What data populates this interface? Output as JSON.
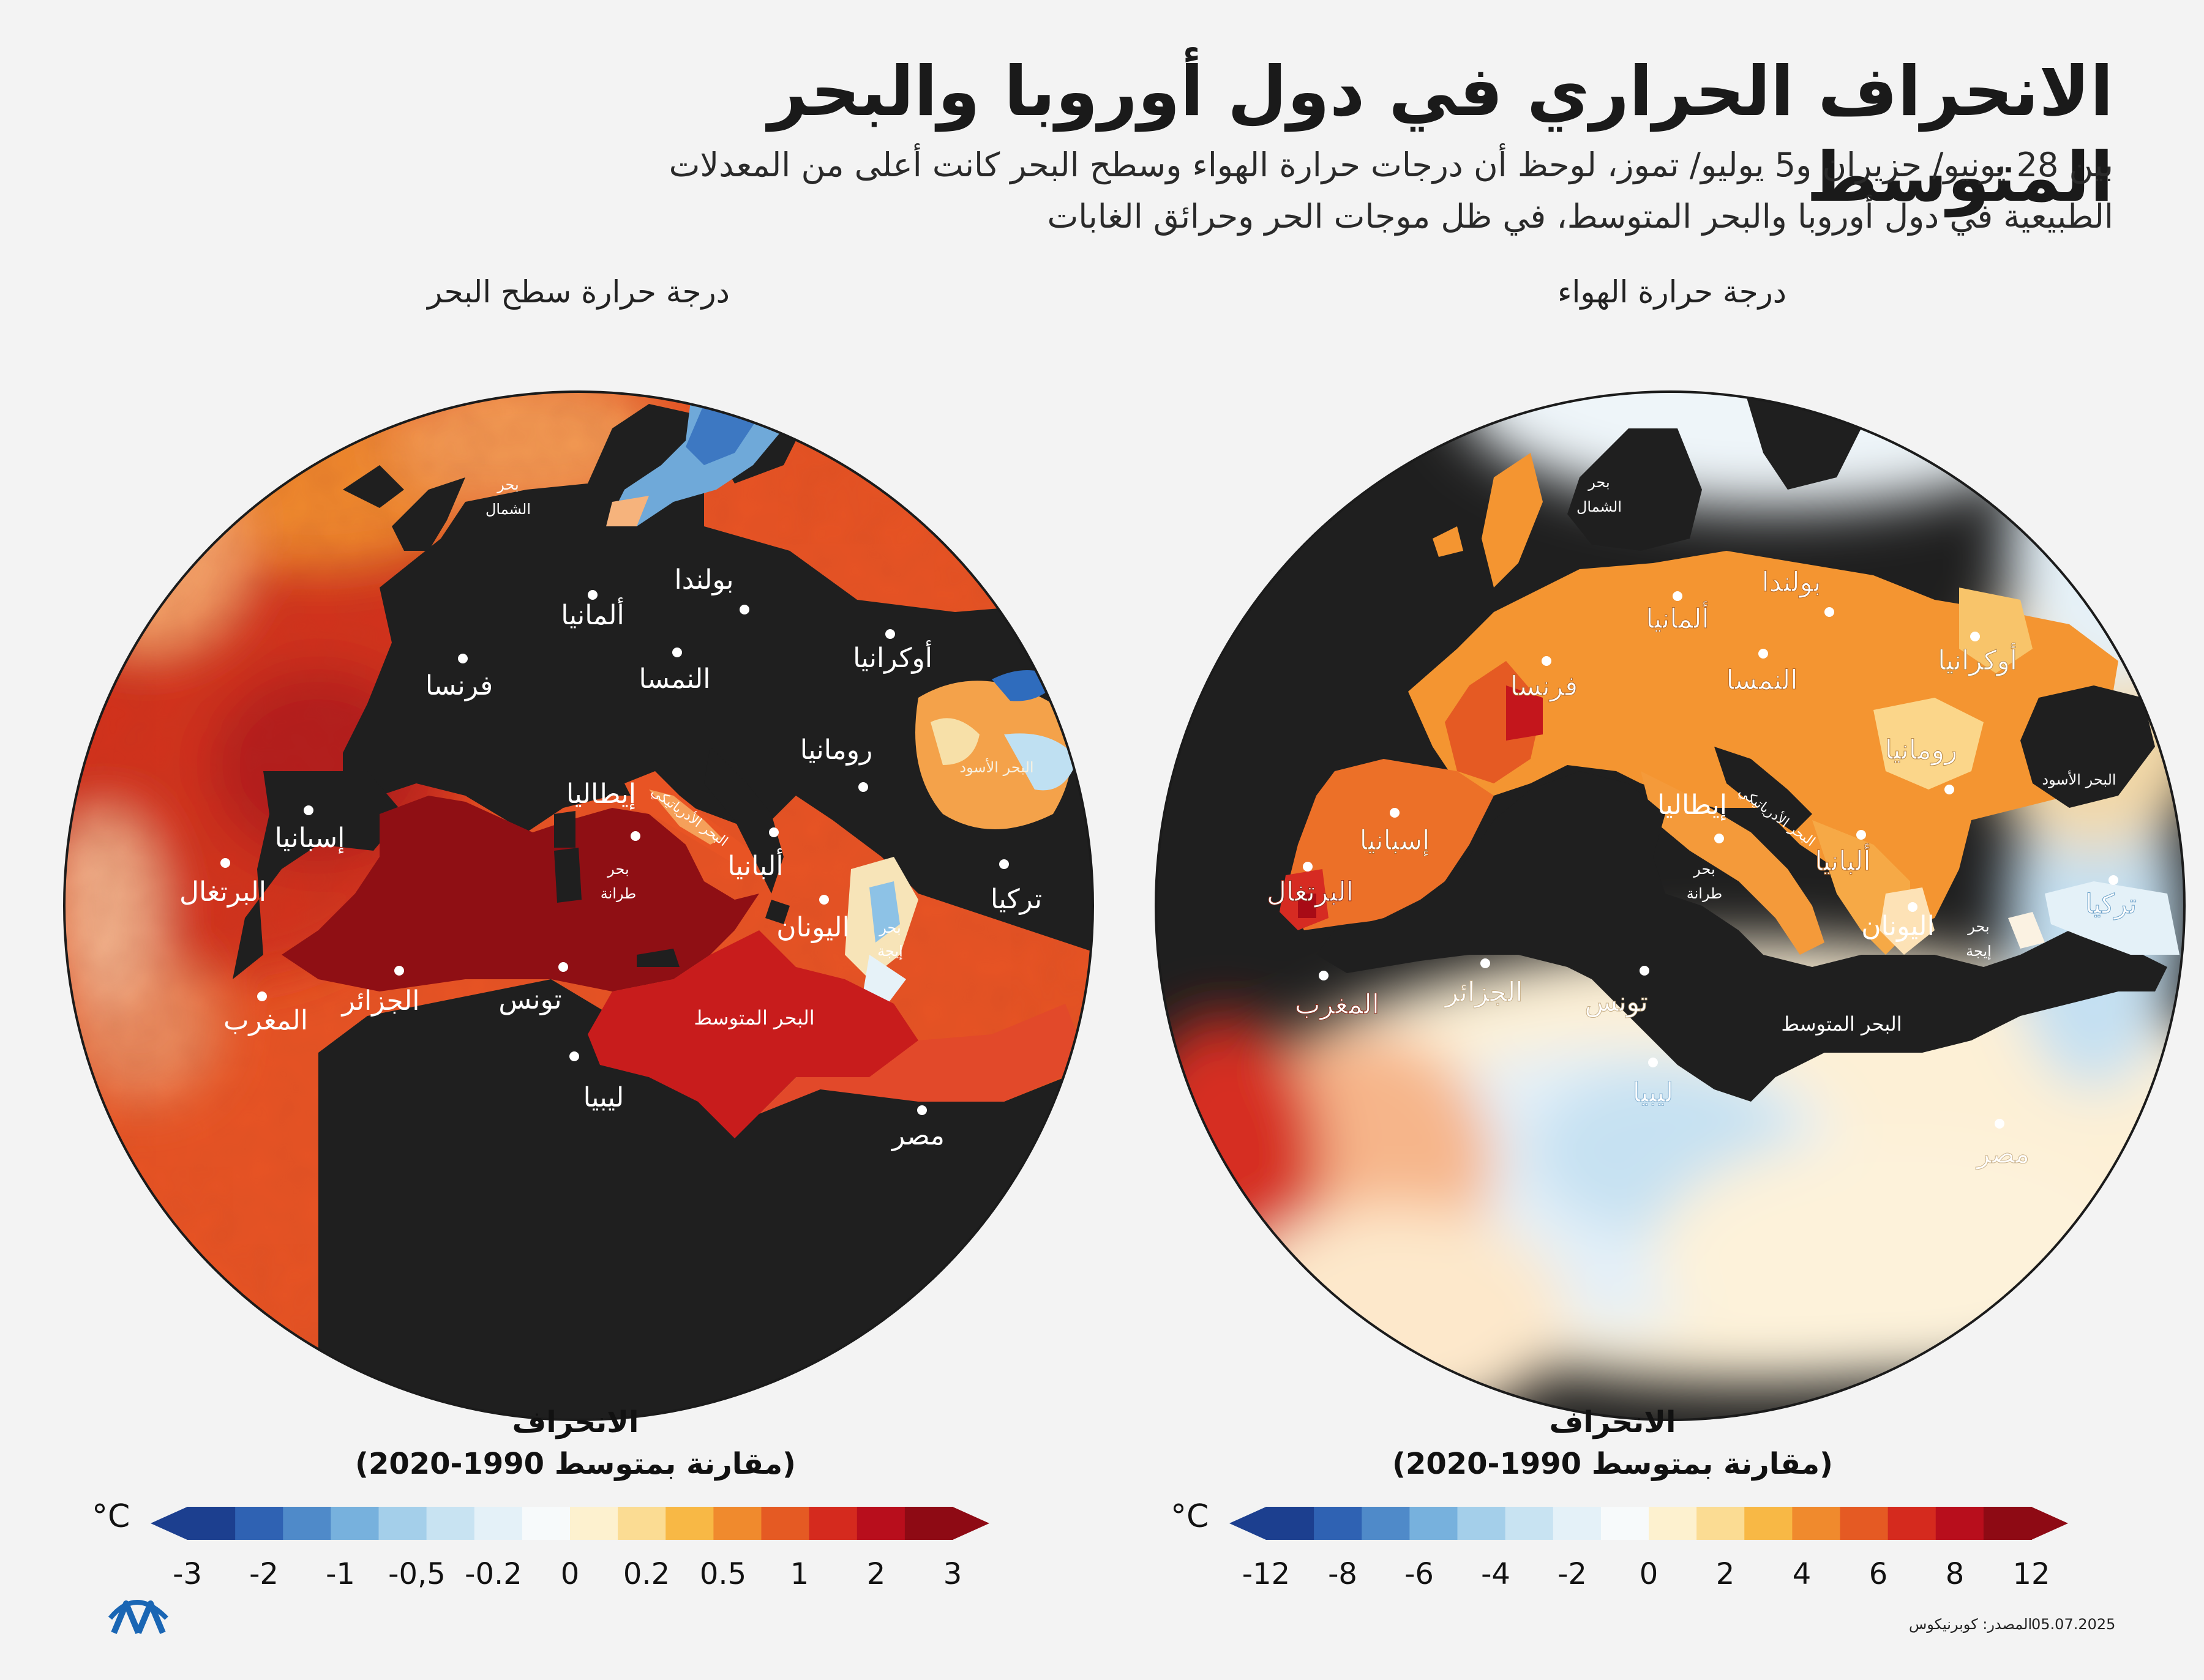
{
  "title": "الانحراف الحراري في دول أوروبا والبحر المتوسط",
  "subtitle_line1": "بين 28 يونيو/ حزيران و5 يوليو/ تموز، لوحظ أن درجات حرارة الهواء وسطح البحر كانت أعلى من المعدلات",
  "subtitle_line2": "الطبيعية في دول أوروبا والبحر المتوسط، في ظل موجات الحر وحرائق الغابات",
  "left_map": {
    "title": "درجة حرارة سطح البحر",
    "legend_title": "الانحراف",
    "legend_subtitle": "(مقارنة بمتوسط 1990-2020)",
    "unit": "°C",
    "ticks": [
      "-3",
      "-2",
      "-1",
      "-0,5",
      "-0.2",
      "0",
      "0.2",
      "0.5",
      "1",
      "2",
      "3"
    ],
    "labels": {
      "north_sea": [
        "بحر",
        "الشمال"
      ],
      "germany": "ألمانيا",
      "poland": "بولندا",
      "france": "فرنسا",
      "austria": "النمسا",
      "ukraine": "أوكرانيا",
      "romania": "رومانيا",
      "black_sea": "البحر الأسود",
      "spain": "إسبانيا",
      "portugal": "البرتغال",
      "italy": "إيطاليا",
      "adriatic": "البحر الأدرياتيكي",
      "albania": "ألبانيا",
      "greece": "اليونان",
      "aegean": [
        "بحر",
        "إيجة"
      ],
      "turkey": "تركيا",
      "tyrrhenian": [
        "بحر",
        "طرانة"
      ],
      "algeria": "الجزائر",
      "tunisia": "تونس",
      "morocco": "المغرب",
      "libya": "ليبيا",
      "mediterranean": "البحر المتوسط",
      "egypt": "مصر"
    }
  },
  "right_map": {
    "title": "درجة حرارة الهواء",
    "legend_title": "الانحراف",
    "legend_subtitle": "(مقارنة بمتوسط 1990-2020)",
    "unit": "°C",
    "ticks": [
      "-12",
      "-8",
      "-6",
      "-4",
      "-2",
      "0",
      "2",
      "4",
      "6",
      "8",
      "12"
    ],
    "labels": {
      "north_sea": [
        "بحر",
        "الشمال"
      ],
      "germany": "ألمانيا",
      "poland": "بولندا",
      "france": "فرنسا",
      "austria": "النمسا",
      "ukraine": "أوكرانيا",
      "romania": "رومانيا",
      "black_sea": "البحر الأسود",
      "spain": "إسبانيا",
      "portugal": "البرتغال",
      "italy": "إيطاليا",
      "adriatic": "البحر الأدرياتيكي",
      "albania": "ألبانيا",
      "greece": "اليونان",
      "aegean": [
        "بحر",
        "إيجة"
      ],
      "turkey": "تركيا",
      "tyrrhenian": [
        "بحر",
        "طرانة"
      ],
      "algeria": "الجزائر",
      "tunisia": "تونس",
      "morocco": "المغرب",
      "libya": "ليبيا",
      "mediterranean": "البحر المتوسط",
      "egypt": "مصر"
    }
  },
  "legend_colors": [
    "#1c3f8f",
    "#2f62b3",
    "#4f8ac9",
    "#77b1dd",
    "#a4cfea",
    "#c8e3f2",
    "#e4f1f8",
    "#f7fafb",
    "#fdf1cf",
    "#fbdc93",
    "#f8b845",
    "#f08a2d",
    "#e55a23",
    "#d52a1e",
    "#b80e1c",
    "#8e0a14"
  ],
  "footer": {
    "date": "05.07.2025",
    "source": "المصدر: كوبرنيكوس",
    "logo": "AA"
  }
}
